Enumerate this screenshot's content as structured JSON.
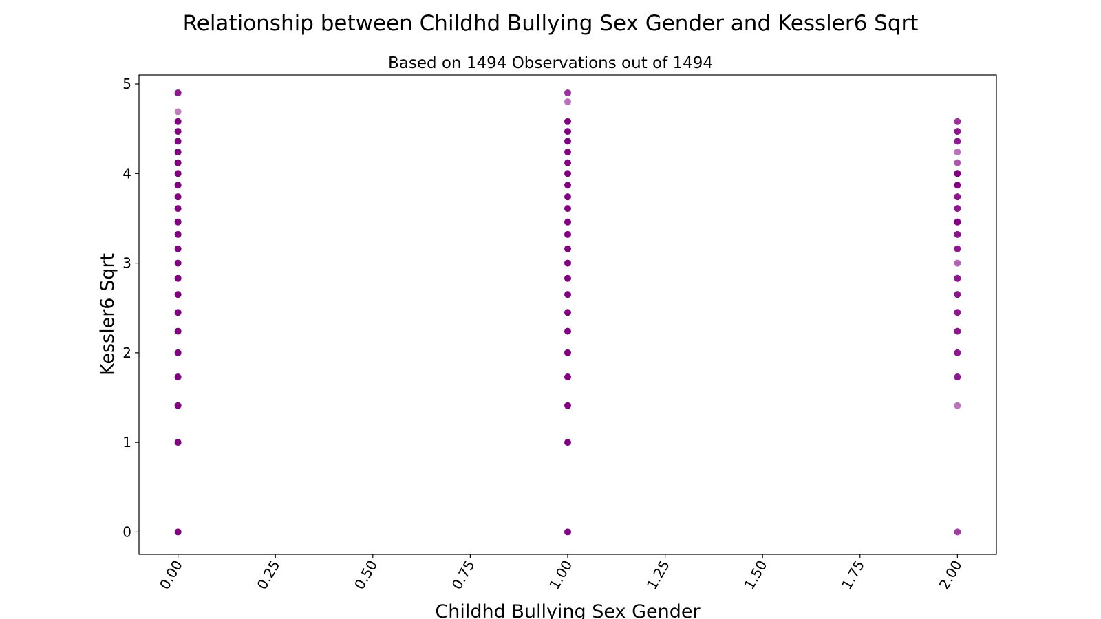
{
  "chart_data": {
    "type": "scatter",
    "title": "Relationship between Childhd Bullying Sex Gender and Kessler6 Sqrt",
    "subtitle": "Based on 1494 Observations out of 1494",
    "xlabel": "Childhd Bullying Sex Gender",
    "ylabel": "Kessler6 Sqrt",
    "xlim": [
      -0.1,
      2.1
    ],
    "ylim": [
      -0.25,
      5.1
    ],
    "x_ticks": [
      0.0,
      0.25,
      0.5,
      0.75,
      1.0,
      1.25,
      1.5,
      1.75,
      2.0
    ],
    "x_tick_labels": [
      "0.00",
      "0.25",
      "0.50",
      "0.75",
      "1.00",
      "1.25",
      "1.50",
      "1.75",
      "2.00"
    ],
    "y_ticks": [
      0,
      1,
      2,
      3,
      4,
      5
    ],
    "y_tick_labels": [
      "0",
      "1",
      "2",
      "3",
      "4",
      "5"
    ],
    "grid": false,
    "marker_color": "#800080",
    "series": [
      {
        "x": 0,
        "y": [
          0,
          1,
          1.41,
          1.73,
          2,
          2.24,
          2.45,
          2.65,
          2.83,
          3,
          3.16,
          3.32,
          3.46,
          3.61,
          3.74,
          3.87,
          4,
          4.12,
          4.24,
          4.36,
          4.47,
          4.58,
          4.69,
          4.9
        ],
        "opacity": [
          1,
          1,
          1,
          1,
          1,
          1,
          1,
          1,
          1,
          1,
          1,
          1,
          1,
          1,
          1,
          1,
          1,
          1,
          1,
          1,
          1,
          1,
          0.5,
          0.9
        ]
      },
      {
        "x": 1,
        "y": [
          0,
          1,
          1.41,
          1.73,
          2,
          2.24,
          2.45,
          2.65,
          2.83,
          3,
          3.16,
          3.32,
          3.46,
          3.61,
          3.74,
          3.87,
          4,
          4.12,
          4.24,
          4.36,
          4.47,
          4.58,
          4.8,
          4.9
        ],
        "opacity": [
          1,
          1,
          1,
          1,
          1,
          1,
          1,
          1,
          1,
          1,
          1,
          1,
          1,
          1,
          1,
          1,
          1,
          1,
          1,
          1,
          1,
          1,
          0.55,
          0.8
        ]
      },
      {
        "x": 2,
        "y": [
          0,
          1.41,
          1.73,
          2,
          2.24,
          2.45,
          2.65,
          2.83,
          3,
          3.16,
          3.32,
          3.46,
          3.61,
          3.74,
          3.87,
          4,
          4.12,
          4.24,
          4.36,
          4.47,
          4.58
        ],
        "opacity": [
          0.75,
          0.55,
          0.9,
          0.9,
          0.9,
          0.9,
          0.9,
          0.9,
          0.6,
          0.9,
          0.9,
          1,
          0.9,
          0.9,
          1,
          1,
          0.65,
          0.55,
          0.9,
          0.9,
          0.8
        ]
      }
    ]
  }
}
